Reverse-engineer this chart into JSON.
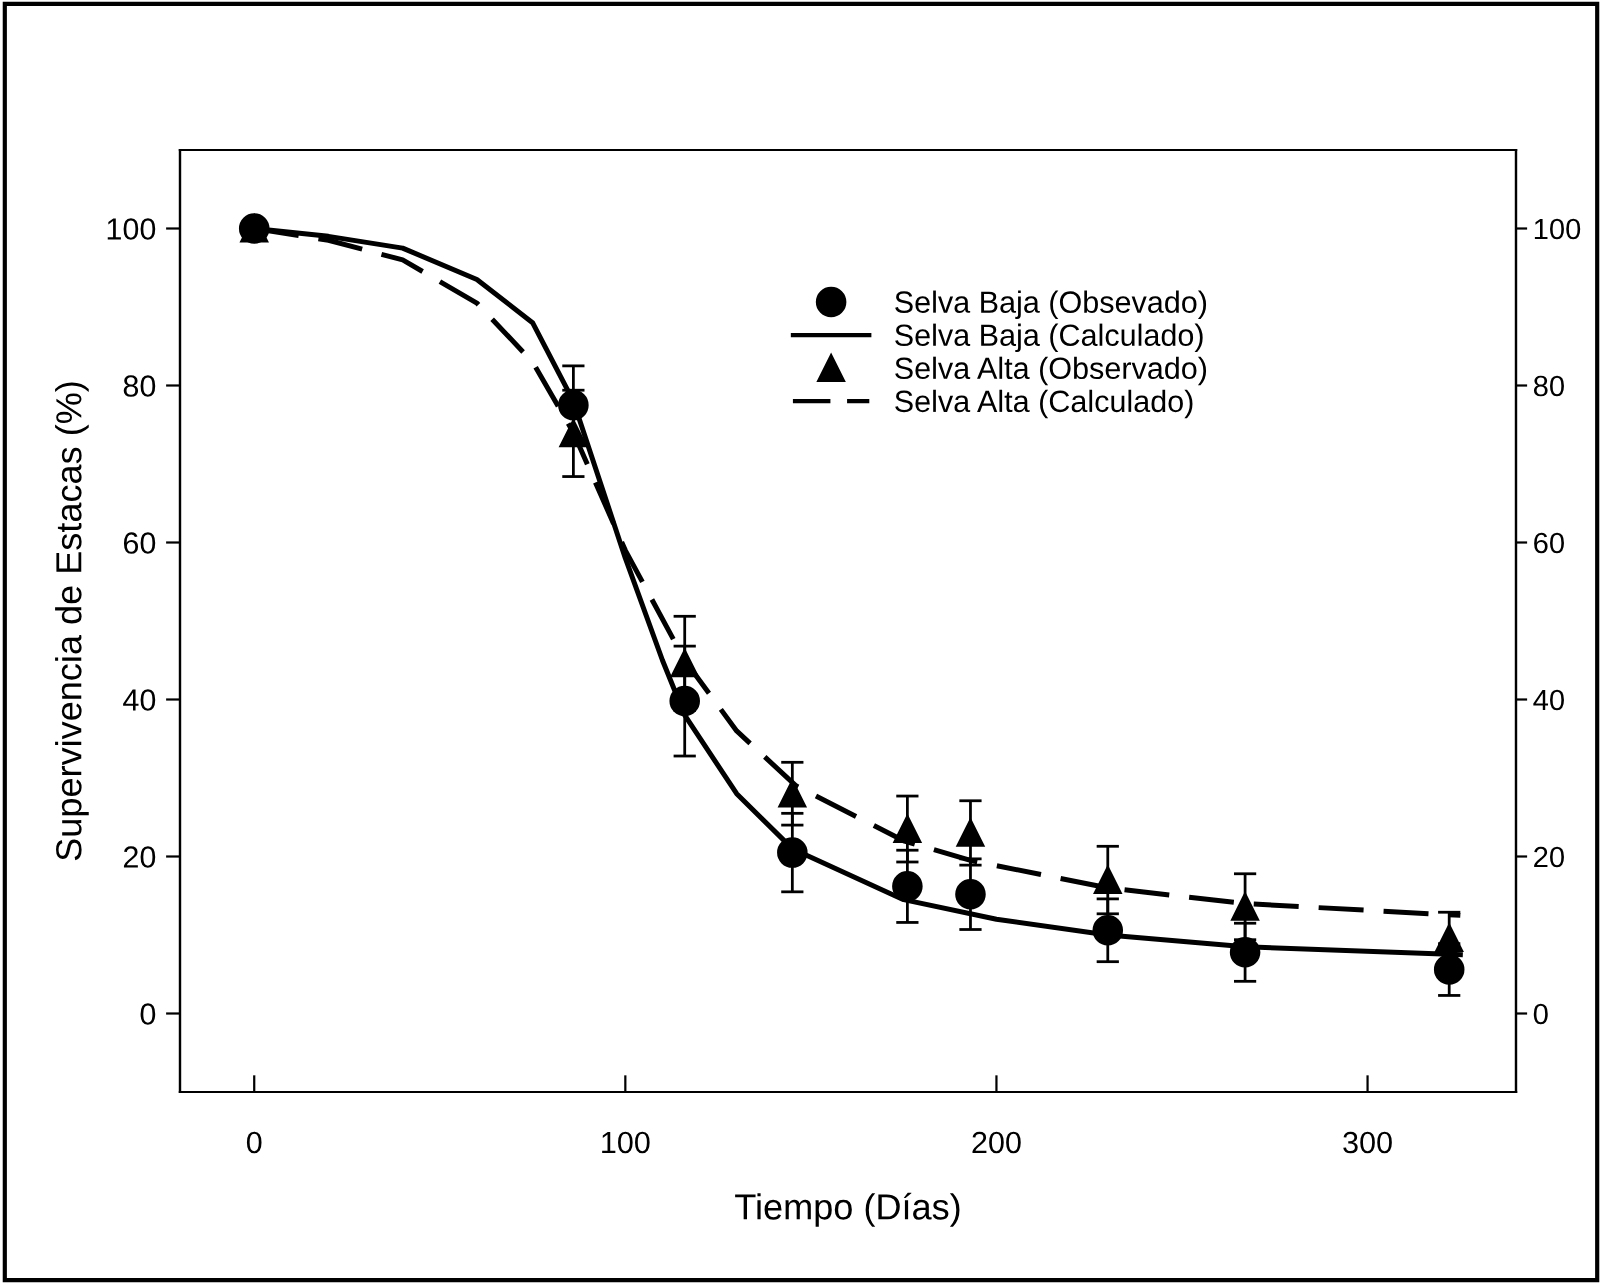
{
  "chart_data": {
    "type": "scatter",
    "xlabel": "Tiempo (Días)",
    "ylabel": "Supervivencia de Estacas (%)",
    "xlim": [
      -20,
      340
    ],
    "xticks": [
      0,
      100,
      200,
      300
    ],
    "ylim": [
      -10,
      110
    ],
    "yticks": [
      0,
      20,
      40,
      60,
      80,
      100
    ],
    "y2lim": [
      -10,
      110
    ],
    "y2ticks": [
      0,
      20,
      40,
      60,
      80,
      100
    ],
    "grid": false,
    "legend": "top right",
    "series": [
      {
        "name": "Selva Baja (Obsevado)",
        "marker": "circle",
        "color": "#000000",
        "x": [
          0,
          86,
          116,
          145,
          176,
          193,
          230,
          267,
          322
        ],
        "values": [
          100,
          77.5,
          39.8,
          20.5,
          16.2,
          15.2,
          10.6,
          7.8,
          5.6
        ],
        "errors": [
          null,
          5,
          7,
          5,
          4.6,
          4.5,
          4,
          3.7,
          3.3
        ]
      },
      {
        "name": "Selva Baja (Calculado)",
        "type": "line",
        "marker": "none",
        "line_style": "solid",
        "color": "#000000",
        "x": [
          0,
          20,
          40,
          60,
          75,
          86,
          100,
          110,
          116,
          130,
          145,
          175,
          200,
          230,
          267,
          325
        ],
        "values": [
          100,
          99,
          97.5,
          93.5,
          88,
          78,
          58,
          45,
          38,
          28,
          21,
          14.5,
          12,
          10,
          8.5,
          7.5
        ]
      },
      {
        "name": "Selva Alta (Observado)",
        "marker": "triangle",
        "color": "#000000",
        "x": [
          0,
          86,
          116,
          145,
          176,
          193,
          230,
          267,
          322
        ],
        "values": [
          100,
          73.9,
          44.6,
          28,
          23.5,
          23,
          17,
          13.6,
          9.6
        ],
        "errors": [
          null,
          5.5,
          6,
          4,
          4.2,
          4.1,
          4.3,
          4.2,
          3.3
        ]
      },
      {
        "name": "Selva Alta (Calculado)",
        "type": "line",
        "marker": "none",
        "line_style": "dashed",
        "color": "#000000",
        "x": [
          0,
          20,
          40,
          60,
          75,
          86,
          100,
          116,
          130,
          146,
          175,
          193,
          230,
          267,
          325
        ],
        "values": [
          100,
          98.5,
          96,
          90.5,
          83,
          74,
          59,
          45,
          36,
          29,
          22,
          19.5,
          16,
          14,
          12.5
        ]
      }
    ]
  }
}
